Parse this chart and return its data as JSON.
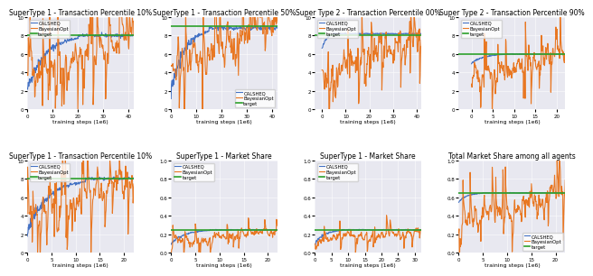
{
  "subplots": [
    {
      "title": "SuperType 1 - Transaction Percentile 10%",
      "xlabel": "training steps (1e6)",
      "xlim": [
        0,
        42
      ],
      "ylim": [
        0,
        10
      ],
      "yticks": [
        0,
        1,
        2,
        3,
        4,
        5,
        6,
        7,
        8,
        9,
        10
      ],
      "target_val": 8.0,
      "calsheq_start": 2.1,
      "calsheq_end": 8.0,
      "calsheq_converge_at": 20,
      "bayesopt_volatile": true,
      "legend_loc": "upper left",
      "legend_inside": true
    },
    {
      "title": "SuperType 1 - Transaction Percentile 50%",
      "xlabel": "training steps (1e6)",
      "xlim": [
        0,
        42
      ],
      "ylim": [
        0,
        10
      ],
      "yticks": [
        0,
        1,
        2,
        3,
        4,
        5,
        6,
        7,
        8,
        9,
        10
      ],
      "target_val": 9.0,
      "calsheq_start": 2.0,
      "calsheq_end": 8.8,
      "calsheq_converge_at": 15,
      "bayesopt_volatile": true,
      "legend_loc": "lower right",
      "legend_inside": true
    },
    {
      "title": "Super Type 2 - Transaction Percentile 00%",
      "xlabel": "training steps (1e6)",
      "xlim": [
        -3,
        42
      ],
      "ylim": [
        0,
        10
      ],
      "yticks": [
        0,
        1,
        2,
        3,
        4,
        5,
        6,
        7,
        8,
        9,
        10
      ],
      "target_val": 8.0,
      "calsheq_start": 6.5,
      "calsheq_end": 8.2,
      "calsheq_converge_at": 5,
      "bayesopt_volatile": true,
      "legend_loc": "upper left",
      "legend_inside": true
    },
    {
      "title": "Super Type 2 - Transaction Percentile 90%",
      "xlabel": "training steps (1e6)",
      "xlim": [
        -3,
        22
      ],
      "ylim": [
        0,
        10
      ],
      "yticks": [
        0,
        1,
        2,
        3,
        4,
        5,
        6,
        7,
        8,
        9,
        10
      ],
      "target_val": 6.0,
      "calsheq_start": 5.0,
      "calsheq_end": 6.0,
      "calsheq_converge_at": 8,
      "bayesopt_volatile": true,
      "legend_loc": "upper left",
      "legend_inside": true
    },
    {
      "title": "SuperType 1 - Transaction Percentile 10%",
      "xlabel": "training steps (1e6)",
      "xlim": [
        0,
        22
      ],
      "ylim": [
        0,
        10
      ],
      "yticks": [
        0,
        1,
        2,
        3,
        4,
        5,
        6,
        7,
        8,
        9,
        10
      ],
      "target_val": 8.0,
      "calsheq_start": 2.2,
      "calsheq_end": 8.0,
      "calsheq_converge_at": 12,
      "bayesopt_volatile": true,
      "legend_loc": "upper left",
      "legend_inside": true
    },
    {
      "title": "SuperType 1 - Market Share",
      "xlabel": "training steps (1e6)",
      "xlim": [
        0,
        22
      ],
      "ylim": [
        0.0,
        1.0
      ],
      "yticks": [
        0.0,
        0.1,
        0.2,
        0.3,
        0.4,
        0.5,
        0.6,
        0.7,
        0.8,
        0.9,
        1.0
      ],
      "target_val": 0.25,
      "calsheq_start": 0.1,
      "calsheq_end": 0.25,
      "calsheq_converge_at": 8,
      "bayesopt_volatile": true,
      "legend_loc": "upper left",
      "legend_inside": true
    },
    {
      "title": "SuperType 1 - Market Share",
      "xlabel": "training steps (1e6)",
      "xlim": [
        0,
        32
      ],
      "ylim": [
        0.0,
        1.0
      ],
      "yticks": [
        0.0,
        0.1,
        0.2,
        0.3,
        0.4,
        0.5,
        0.6,
        0.7,
        0.8,
        0.9,
        1.0
      ],
      "target_val": 0.25,
      "calsheq_start": 0.1,
      "calsheq_end": 0.25,
      "calsheq_converge_at": 8,
      "bayesopt_volatile": true,
      "legend_loc": "upper left",
      "legend_inside": true
    },
    {
      "title": "Total Market Share among all agents",
      "xlabel": "training steps (1e6)",
      "xlim": [
        0,
        22
      ],
      "ylim": [
        0.0,
        1.0
      ],
      "yticks": [
        0.0,
        0.1,
        0.2,
        0.3,
        0.4,
        0.5,
        0.6,
        0.7,
        0.8,
        0.9,
        1.0
      ],
      "target_val": 0.65,
      "calsheq_start": 0.55,
      "calsheq_end": 0.65,
      "calsheq_converge_at": 5,
      "bayesopt_volatile": true,
      "legend_loc": "lower right",
      "legend_inside": true
    }
  ],
  "colors": {
    "calsheq": "#4472C4",
    "bayesopt": "#E87722",
    "target": "#2CA02C",
    "background": "#E8E8F0"
  },
  "legend_labels": [
    "CALSHEQ",
    "BayesianOpt",
    "target"
  ]
}
